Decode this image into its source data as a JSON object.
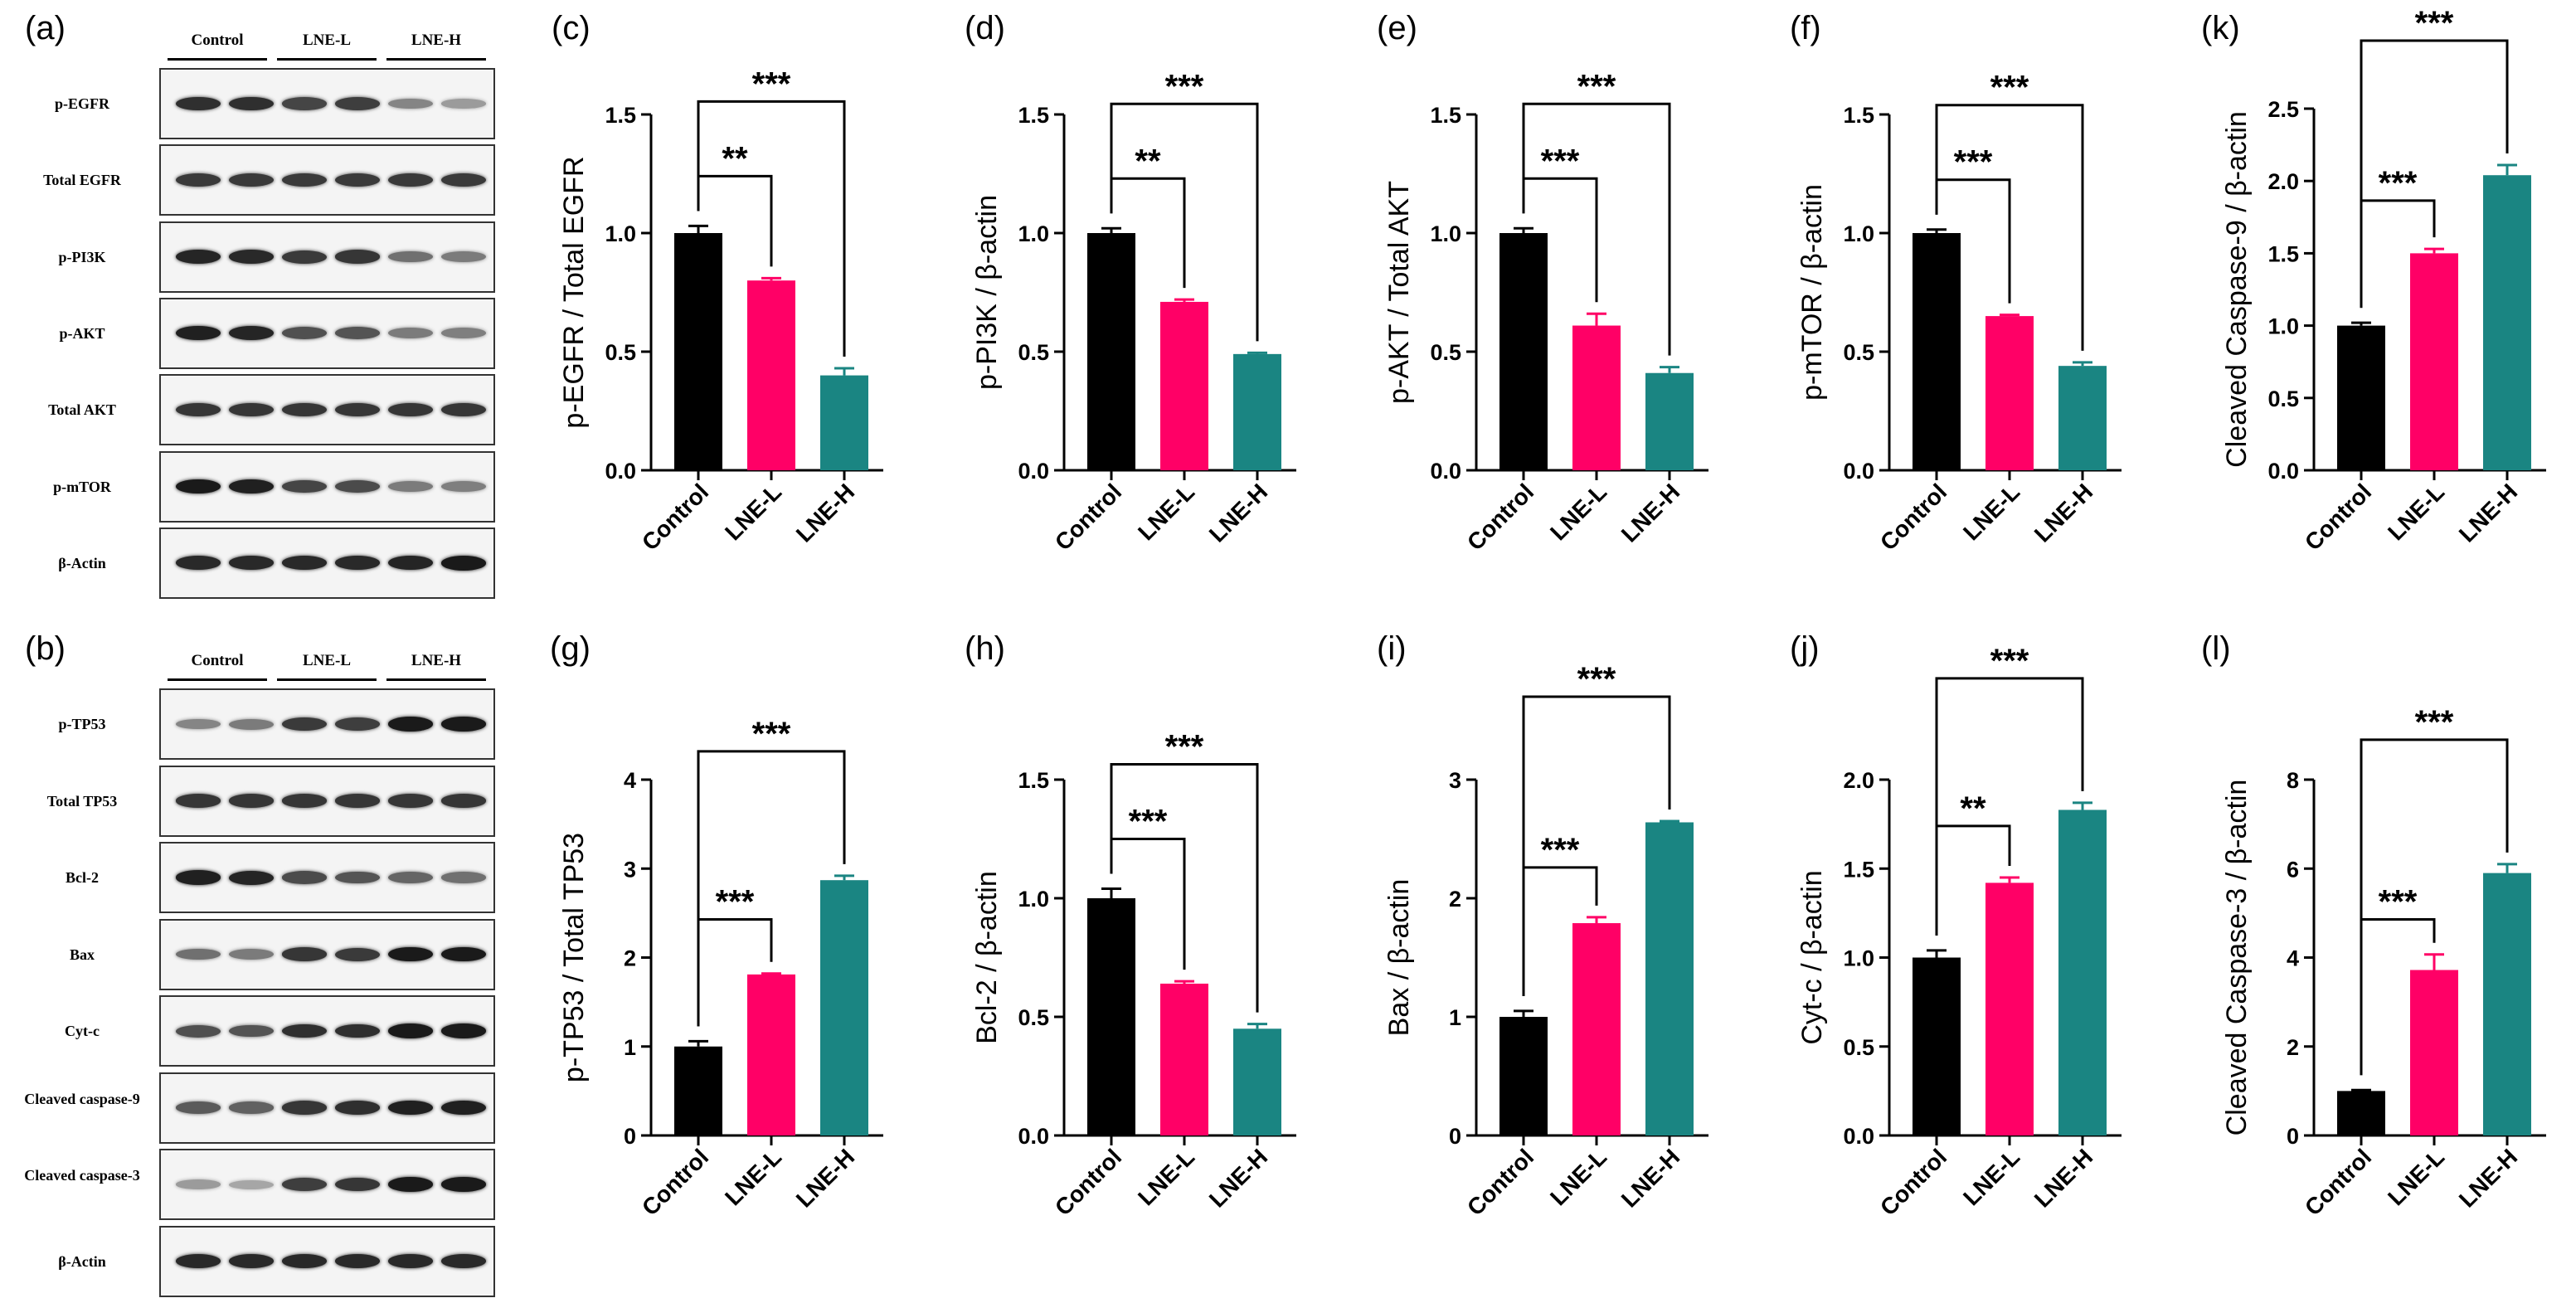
{
  "panel_letters": {
    "a": "(a)",
    "b": "(b)",
    "c": "(c)",
    "d": "(d)",
    "e": "(e)",
    "f": "(f)",
    "k": "(k)",
    "g": "(g)",
    "h": "(h)",
    "i": "(i)",
    "j": "(j)",
    "l": "(l)"
  },
  "blots": {
    "a": {
      "groups": [
        "Control",
        "LNE-L",
        "LNE-H"
      ],
      "rows": [
        {
          "label": "p-EGFR",
          "intensity": [
            0.85,
            0.85,
            0.75,
            0.78,
            0.45,
            0.35
          ]
        },
        {
          "label": "Total EGFR",
          "intensity": [
            0.8,
            0.8,
            0.8,
            0.8,
            0.8,
            0.8
          ]
        },
        {
          "label": "p-PI3K",
          "intensity": [
            0.9,
            0.88,
            0.8,
            0.82,
            0.55,
            0.5
          ]
        },
        {
          "label": "p-AKT",
          "intensity": [
            0.92,
            0.9,
            0.7,
            0.68,
            0.5,
            0.48
          ]
        },
        {
          "label": "Total AKT",
          "intensity": [
            0.82,
            0.82,
            0.82,
            0.82,
            0.82,
            0.82
          ]
        },
        {
          "label": "p-mTOR",
          "intensity": [
            0.95,
            0.92,
            0.75,
            0.72,
            0.5,
            0.48
          ]
        },
        {
          "label": "β-Actin",
          "intensity": [
            0.88,
            0.88,
            0.88,
            0.88,
            0.9,
            0.95
          ]
        }
      ]
    },
    "b": {
      "groups": [
        "Control",
        "LNE-L",
        "LNE-H"
      ],
      "rows": [
        {
          "label": "p-TP53",
          "intensity": [
            0.45,
            0.5,
            0.8,
            0.78,
            0.95,
            0.95
          ]
        },
        {
          "label": "Total TP53",
          "intensity": [
            0.82,
            0.82,
            0.82,
            0.82,
            0.82,
            0.82
          ]
        },
        {
          "label": "Bcl-2",
          "intensity": [
            0.92,
            0.9,
            0.72,
            0.68,
            0.6,
            0.55
          ]
        },
        {
          "label": "Bax",
          "intensity": [
            0.55,
            0.5,
            0.82,
            0.8,
            0.95,
            0.95
          ]
        },
        {
          "label": "Cyt-c",
          "intensity": [
            0.7,
            0.68,
            0.85,
            0.85,
            0.95,
            0.95
          ]
        },
        {
          "label": "Cleaved caspase-9",
          "intensity": [
            0.65,
            0.62,
            0.82,
            0.85,
            0.92,
            0.92
          ]
        },
        {
          "label": "Cleaved caspase-3",
          "intensity": [
            0.35,
            0.3,
            0.78,
            0.82,
            0.95,
            0.95
          ]
        },
        {
          "label": "β-Actin",
          "intensity": [
            0.88,
            0.88,
            0.88,
            0.88,
            0.88,
            0.88
          ]
        }
      ]
    }
  },
  "colors": {
    "Control": "#000000",
    "LNE-L": "#ff0066",
    "LNE-H": "#1a8582"
  },
  "chart_data": [
    {
      "id": "c",
      "type": "bar",
      "categories": [
        "Control",
        "LNE-L",
        "LNE-H"
      ],
      "values": [
        1.0,
        0.8,
        0.4
      ],
      "errors": [
        0.03,
        0.01,
        0.03
      ],
      "ylabel": "p-EGFR / Total EGFR",
      "ylim": [
        0,
        1.5
      ],
      "yticks": [
        "0.0",
        "0.5",
        "1.0",
        "1.5"
      ],
      "significance": [
        {
          "to": 1,
          "label": "**"
        },
        {
          "to": 2,
          "label": "***"
        }
      ]
    },
    {
      "id": "d",
      "type": "bar",
      "categories": [
        "Control",
        "LNE-L",
        "LNE-H"
      ],
      "values": [
        1.0,
        0.71,
        0.49
      ],
      "errors": [
        0.02,
        0.01,
        0.005
      ],
      "ylabel": "p-PI3K / β-actin",
      "ylim": [
        0,
        1.5
      ],
      "yticks": [
        "0.0",
        "0.5",
        "1.0",
        "1.5"
      ],
      "significance": [
        {
          "to": 1,
          "label": "**"
        },
        {
          "to": 2,
          "label": "***"
        }
      ]
    },
    {
      "id": "e",
      "type": "bar",
      "categories": [
        "Control",
        "LNE-L",
        "LNE-H"
      ],
      "values": [
        1.0,
        0.61,
        0.41
      ],
      "errors": [
        0.02,
        0.05,
        0.025
      ],
      "ylabel": "p-AKT / Total AKT",
      "ylim": [
        0,
        1.5
      ],
      "yticks": [
        "0.0",
        "0.5",
        "1.0",
        "1.5"
      ],
      "significance": [
        {
          "to": 1,
          "label": "***"
        },
        {
          "to": 2,
          "label": "***"
        }
      ]
    },
    {
      "id": "f",
      "type": "bar",
      "categories": [
        "Control",
        "LNE-L",
        "LNE-H"
      ],
      "values": [
        1.0,
        0.65,
        0.44
      ],
      "errors": [
        0.015,
        0.005,
        0.015
      ],
      "ylabel": "p-mTOR / β-actin",
      "ylim": [
        0,
        1.5
      ],
      "yticks": [
        "0.0",
        "0.5",
        "1.0",
        "1.5"
      ],
      "significance": [
        {
          "to": 1,
          "label": "***"
        },
        {
          "to": 2,
          "label": "***"
        }
      ]
    },
    {
      "id": "k",
      "type": "bar",
      "categories": [
        "Control",
        "LNE-L",
        "LNE-H"
      ],
      "values": [
        1.0,
        1.5,
        2.04
      ],
      "errors": [
        0.02,
        0.03,
        0.07
      ],
      "ylabel": "Cleaved Caspase-9 / β-actin",
      "ylim": [
        0,
        2.5
      ],
      "yticks": [
        "0.0",
        "0.5",
        "1.0",
        "1.5",
        "2.0",
        "2.5"
      ],
      "significance": [
        {
          "to": 1,
          "label": "***"
        },
        {
          "to": 2,
          "label": "***"
        }
      ]
    },
    {
      "id": "g",
      "type": "bar",
      "categories": [
        "Control",
        "LNE-L",
        "LNE-H"
      ],
      "values": [
        1.0,
        1.81,
        2.87
      ],
      "errors": [
        0.06,
        0.01,
        0.05
      ],
      "ylabel": "p-TP53 / Total TP53",
      "ylim": [
        0,
        4
      ],
      "yticks": [
        "0",
        "1",
        "2",
        "3",
        "4"
      ],
      "significance": [
        {
          "to": 1,
          "label": "***"
        },
        {
          "to": 2,
          "label": "***"
        }
      ]
    },
    {
      "id": "h",
      "type": "bar",
      "categories": [
        "Control",
        "LNE-L",
        "LNE-H"
      ],
      "values": [
        1.0,
        0.64,
        0.45
      ],
      "errors": [
        0.04,
        0.01,
        0.02
      ],
      "ylabel": "Bcl-2 / β-actin",
      "ylim": [
        0,
        1.5
      ],
      "yticks": [
        "0.0",
        "0.5",
        "1.0",
        "1.5"
      ],
      "significance": [
        {
          "to": 1,
          "label": "***"
        },
        {
          "to": 2,
          "label": "***"
        }
      ]
    },
    {
      "id": "i",
      "type": "bar",
      "categories": [
        "Control",
        "LNE-L",
        "LNE-H"
      ],
      "values": [
        1.0,
        1.79,
        2.64
      ],
      "errors": [
        0.05,
        0.05,
        0.01
      ],
      "ylabel": "Bax / β-actin",
      "ylim": [
        0,
        3
      ],
      "yticks": [
        "0",
        "1",
        "2",
        "3"
      ],
      "significance": [
        {
          "to": 1,
          "label": "***"
        },
        {
          "to": 2,
          "label": "***"
        }
      ]
    },
    {
      "id": "j",
      "type": "bar",
      "categories": [
        "Control",
        "LNE-L",
        "LNE-H"
      ],
      "values": [
        1.0,
        1.42,
        1.83
      ],
      "errors": [
        0.04,
        0.03,
        0.04
      ],
      "ylabel": "Cyt-c / β-actin",
      "ylim": [
        0,
        2
      ],
      "yticks": [
        "0.0",
        "0.5",
        "1.0",
        "1.5",
        "2.0"
      ],
      "significance": [
        {
          "to": 1,
          "label": "**"
        },
        {
          "to": 2,
          "label": "***"
        }
      ]
    },
    {
      "id": "l",
      "type": "bar",
      "categories": [
        "Control",
        "LNE-L",
        "LNE-H"
      ],
      "values": [
        1.0,
        3.72,
        5.9
      ],
      "errors": [
        0.02,
        0.35,
        0.2
      ],
      "ylabel": "Cleaved Caspase-3 / β-actin",
      "ylim": [
        0,
        8
      ],
      "yticks": [
        "0",
        "2",
        "4",
        "6",
        "8"
      ],
      "significance": [
        {
          "to": 1,
          "label": "***"
        },
        {
          "to": 2,
          "label": "***"
        }
      ]
    }
  ]
}
